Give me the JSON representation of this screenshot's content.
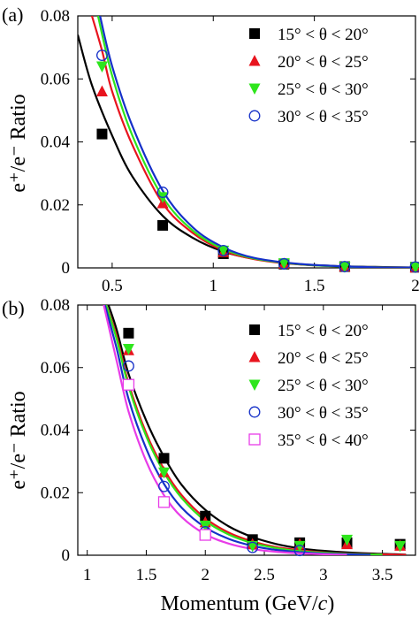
{
  "colors": {
    "black": "#000000",
    "red": "#e8141e",
    "green": "#2ee51c",
    "blue": "#1530c8",
    "magenta": "#e83ce8"
  },
  "chart_data": [
    {
      "panel_label": "(a)",
      "type": "scatter",
      "ylabel": "e⁺/e⁻ Ratio",
      "xlabel": "",
      "xlim": [
        0.33,
        2.0
      ],
      "ylim": [
        0,
        0.08
      ],
      "xticks": [
        0.5,
        1,
        1.5,
        2
      ],
      "xtick_labels": [
        "0.5",
        "1",
        "1.5",
        "2"
      ],
      "yticks": [
        0,
        0.02,
        0.04,
        0.06,
        0.08
      ],
      "ytick_labels": [
        "0",
        "0.02",
        "0.04",
        "0.06",
        "0.08"
      ],
      "legend_position": "top-right",
      "series": [
        {
          "name": "15° < θ < 20°",
          "color": "black",
          "marker": "filled-square",
          "points": [
            [
              0.45,
              0.0425
            ],
            [
              0.75,
              0.0135
            ],
            [
              1.05,
              0.0045
            ],
            [
              1.35,
              0.0012
            ],
            [
              1.65,
              0.0004
            ],
            [
              2.0,
              0.0002
            ]
          ],
          "fit": [
            [
              0.33,
              0.074
            ],
            [
              0.4,
              0.058
            ],
            [
              0.5,
              0.042
            ],
            [
              0.6,
              0.029
            ],
            [
              0.75,
              0.0165
            ],
            [
              0.9,
              0.0095
            ],
            [
              1.05,
              0.0052
            ],
            [
              1.2,
              0.0029
            ],
            [
              1.4,
              0.0013
            ],
            [
              1.6,
              0.0006
            ],
            [
              1.8,
              0.0003
            ],
            [
              2.0,
              0.0001
            ]
          ]
        },
        {
          "name": "20° < θ < 25°",
          "color": "red",
          "marker": "filled-triangle-up",
          "points": [
            [
              0.45,
              0.056
            ],
            [
              0.75,
              0.0205
            ],
            [
              1.05,
              0.005
            ],
            [
              1.35,
              0.0013
            ],
            [
              1.65,
              0.0004
            ],
            [
              2.0,
              0.0001
            ]
          ],
          "fit": [
            [
              0.4,
              0.08
            ],
            [
              0.45,
              0.069
            ],
            [
              0.5,
              0.056
            ],
            [
              0.6,
              0.039
            ],
            [
              0.75,
              0.0205
            ],
            [
              0.9,
              0.011
            ],
            [
              1.05,
              0.0055
            ],
            [
              1.2,
              0.0028
            ],
            [
              1.4,
              0.0012
            ],
            [
              1.6,
              0.0005
            ],
            [
              1.8,
              0.0002
            ],
            [
              2.0,
              0.0001
            ]
          ]
        },
        {
          "name": "25° < θ < 30°",
          "color": "green",
          "marker": "filled-triangle-down",
          "points": [
            [
              0.45,
              0.064
            ],
            [
              0.75,
              0.0225
            ],
            [
              1.05,
              0.0055
            ],
            [
              1.35,
              0.0015
            ],
            [
              1.65,
              0.0004
            ],
            [
              2.0,
              0.0002
            ]
          ],
          "fit": [
            [
              0.43,
              0.08
            ],
            [
              0.5,
              0.061
            ],
            [
              0.6,
              0.042
            ],
            [
              0.75,
              0.0225
            ],
            [
              0.9,
              0.0118
            ],
            [
              1.05,
              0.006
            ],
            [
              1.2,
              0.003
            ],
            [
              1.4,
              0.0013
            ],
            [
              1.6,
              0.0005
            ],
            [
              1.8,
              0.0002
            ],
            [
              2.0,
              0.0001
            ]
          ]
        },
        {
          "name": "30° < θ < 35°",
          "color": "blue",
          "marker": "open-circle",
          "points": [
            [
              0.45,
              0.0675
            ],
            [
              0.75,
              0.024
            ],
            [
              1.05,
              0.0055
            ],
            [
              1.35,
              0.0013
            ],
            [
              1.65,
              0.0004
            ],
            [
              2.0,
              0.0003
            ]
          ],
          "fit": [
            [
              0.44,
              0.08
            ],
            [
              0.5,
              0.064
            ],
            [
              0.6,
              0.045
            ],
            [
              0.75,
              0.0245
            ],
            [
              0.9,
              0.0128
            ],
            [
              1.05,
              0.0065
            ],
            [
              1.2,
              0.0032
            ],
            [
              1.4,
              0.0014
            ],
            [
              1.6,
              0.0006
            ],
            [
              1.8,
              0.0002
            ],
            [
              2.0,
              0.0001
            ]
          ]
        }
      ]
    },
    {
      "panel_label": "(b)",
      "type": "scatter",
      "ylabel": "e⁺/e⁻ Ratio",
      "xlabel_prefix": "Momentum (GeV/",
      "xlabel_italic": "c",
      "xlabel_suffix": ")",
      "xlim": [
        0.92,
        3.78
      ],
      "ylim": [
        0,
        0.08
      ],
      "xticks": [
        1,
        1.5,
        2,
        2.5,
        3,
        3.5
      ],
      "xtick_labels": [
        "1",
        "1.5",
        "2",
        "2.5",
        "3",
        "3.5"
      ],
      "yticks": [
        0,
        0.02,
        0.04,
        0.06,
        0.08
      ],
      "ytick_labels": [
        "0",
        "0.02",
        "0.04",
        "0.06",
        "0.08"
      ],
      "legend_position": "top-right",
      "series": [
        {
          "name": "15° < θ < 20°",
          "color": "black",
          "marker": "filled-square",
          "points": [
            [
              1.35,
              0.071
            ],
            [
              1.65,
              0.031
            ],
            [
              2.0,
              0.0125
            ],
            [
              2.4,
              0.005
            ],
            [
              2.8,
              0.004
            ],
            [
              3.2,
              0.004
            ],
            [
              3.65,
              0.0035
            ]
          ],
          "fit": [
            [
              1.18,
              0.08
            ],
            [
              1.25,
              0.072
            ],
            [
              1.35,
              0.058
            ],
            [
              1.5,
              0.043
            ],
            [
              1.65,
              0.0315
            ],
            [
              1.8,
              0.0225
            ],
            [
              2.0,
              0.0145
            ],
            [
              2.2,
              0.0092
            ],
            [
              2.4,
              0.0058
            ],
            [
              2.6,
              0.0036
            ],
            [
              2.8,
              0.0022
            ],
            [
              3.0,
              0.0014
            ],
            [
              3.3,
              0.0007
            ],
            [
              3.6,
              0.0003
            ],
            [
              3.7,
              0.0002
            ]
          ]
        },
        {
          "name": "20° < θ < 25°",
          "color": "red",
          "marker": "filled-triangle-up",
          "points": [
            [
              1.35,
              0.0655
            ],
            [
              1.65,
              0.0265
            ],
            [
              2.0,
              0.0105
            ],
            [
              2.4,
              0.0035
            ],
            [
              2.8,
              0.0035
            ],
            [
              3.2,
              0.0035
            ],
            [
              3.65,
              0.003
            ]
          ],
          "fit": [
            [
              1.16,
              0.08
            ],
            [
              1.25,
              0.07
            ],
            [
              1.35,
              0.055
            ],
            [
              1.5,
              0.039
            ],
            [
              1.65,
              0.0275
            ],
            [
              1.8,
              0.0192
            ],
            [
              2.0,
              0.0118
            ],
            [
              2.2,
              0.0072
            ],
            [
              2.4,
              0.0044
            ],
            [
              2.6,
              0.0026
            ],
            [
              2.8,
              0.0016
            ],
            [
              3.0,
              0.0009
            ],
            [
              3.3,
              0.0004
            ],
            [
              3.6,
              0.0002
            ],
            [
              3.7,
              0.0001
            ]
          ]
        },
        {
          "name": "25° < θ < 30°",
          "color": "green",
          "marker": "filled-triangle-down",
          "points": [
            [
              1.35,
              0.066
            ],
            [
              1.65,
              0.0265
            ],
            [
              2.0,
              0.0095
            ],
            [
              2.4,
              0.003
            ],
            [
              2.8,
              0.003
            ],
            [
              3.2,
              0.005
            ],
            [
              3.65,
              0.003
            ]
          ],
          "fit": [
            [
              1.16,
              0.08
            ],
            [
              1.25,
              0.069
            ],
            [
              1.35,
              0.054
            ],
            [
              1.5,
              0.038
            ],
            [
              1.65,
              0.0265
            ],
            [
              1.8,
              0.0183
            ],
            [
              2.0,
              0.011
            ],
            [
              2.2,
              0.0066
            ],
            [
              2.4,
              0.0039
            ],
            [
              2.6,
              0.0023
            ],
            [
              2.8,
              0.0013
            ],
            [
              3.0,
              0.0008
            ],
            [
              3.3,
              0.0003
            ],
            [
              3.5,
              0.0002
            ]
          ]
        },
        {
          "name": "30° < θ < 35°",
          "color": "blue",
          "marker": "open-circle",
          "points": [
            [
              1.35,
              0.0605
            ],
            [
              1.65,
              0.022
            ],
            [
              2.0,
              0.0075
            ],
            [
              2.4,
              0.0025
            ],
            [
              2.8,
              0.0015
            ]
          ],
          "fit": [
            [
              1.15,
              0.08
            ],
            [
              1.25,
              0.066
            ],
            [
              1.35,
              0.05
            ],
            [
              1.5,
              0.034
            ],
            [
              1.65,
              0.0228
            ],
            [
              1.8,
              0.0152
            ],
            [
              2.0,
              0.0089
            ],
            [
              2.2,
              0.0052
            ],
            [
              2.4,
              0.003
            ],
            [
              2.6,
              0.0017
            ],
            [
              2.8,
              0.001
            ],
            [
              3.0,
              0.0005
            ],
            [
              3.2,
              0.0003
            ],
            [
              3.4,
              0.0001
            ]
          ]
        },
        {
          "name": "35° < θ < 40°",
          "color": "magenta",
          "marker": "open-square",
          "points": [
            [
              1.35,
              0.0545
            ],
            [
              1.65,
              0.017
            ],
            [
              2.0,
              0.0065
            ]
          ],
          "fit": [
            [
              1.14,
              0.08
            ],
            [
              1.25,
              0.062
            ],
            [
              1.35,
              0.046
            ],
            [
              1.5,
              0.03
            ],
            [
              1.65,
              0.0192
            ],
            [
              1.8,
              0.0122
            ],
            [
              2.0,
              0.0067
            ],
            [
              2.2,
              0.0037
            ],
            [
              2.4,
              0.002
            ],
            [
              2.6,
              0.0011
            ],
            [
              2.8,
              0.0006
            ],
            [
              3.0,
              0.0003
            ],
            [
              3.2,
              0.0001
            ]
          ]
        }
      ]
    }
  ]
}
